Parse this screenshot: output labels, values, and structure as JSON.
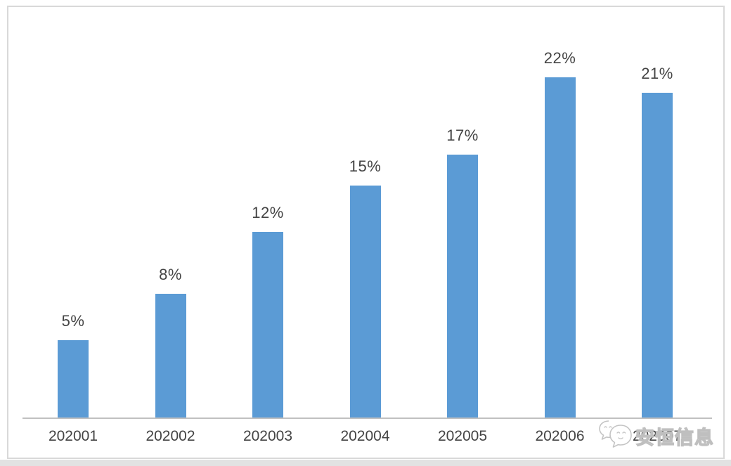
{
  "chart_data": {
    "type": "bar",
    "title": "",
    "categories": [
      "202001",
      "202002",
      "202003",
      "202004",
      "202005",
      "202006",
      "202007"
    ],
    "values": [
      5,
      8,
      12,
      15,
      17,
      22,
      21
    ],
    "data_labels": [
      "5%",
      "8%",
      "12%",
      "15%",
      "17%",
      "22%",
      "21%"
    ],
    "xlabel": "",
    "ylabel": "",
    "ylim": [
      0,
      25
    ],
    "grid": false,
    "legend": false,
    "y_axis_visible": false,
    "bar_color": "#5B9BD5",
    "label_color": "#444444",
    "axis_line_color": "#c0c0c0"
  },
  "watermark": {
    "text": "安恒信息",
    "logo_icon": "anheng-speech-bubbles-logo"
  }
}
